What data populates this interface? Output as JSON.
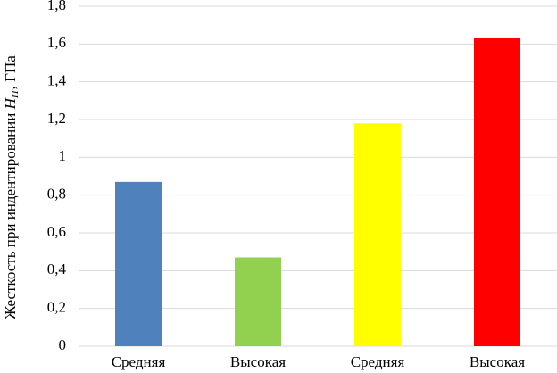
{
  "chart_data": {
    "type": "bar",
    "y_label": {
      "text": "Жесткость при индентировании ",
      "symbol": "H",
      "subscript": "IT",
      "unit": ", ГПа"
    },
    "categories": [
      "Средняя",
      "Высокая",
      "Средняя",
      "Высокая"
    ],
    "values": [
      0.87,
      0.47,
      1.18,
      1.63
    ],
    "colors": [
      "#4f81bd",
      "#92d050",
      "#ffff00",
      "#ff0000"
    ],
    "ylim": [
      0,
      1.8
    ],
    "yticks": [
      0,
      {
        "value": 0.2,
        "label": "0,2"
      },
      {
        "value": 0.4,
        "label": "0,4"
      },
      {
        "value": 0.6,
        "label": "0,6"
      },
      {
        "value": 0.8,
        "label": "0,8"
      },
      1,
      {
        "value": 1.2,
        "label": "1,2"
      },
      {
        "value": 1.4,
        "label": "1,4"
      },
      {
        "value": 1.6,
        "label": "1,6"
      },
      {
        "value": 1.8,
        "label": "1,8"
      }
    ],
    "grid": true
  }
}
